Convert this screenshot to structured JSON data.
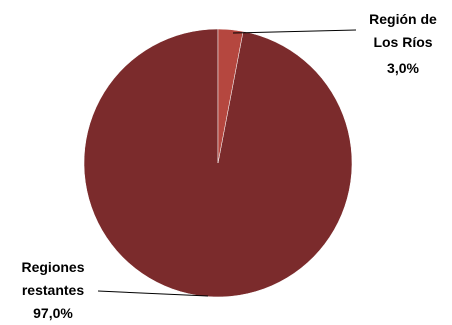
{
  "chart_data": {
    "type": "pie",
    "categories": [
      "Región de Los Ríos",
      "Regiones restantes"
    ],
    "values": [
      3.0,
      97.0
    ],
    "value_labels": [
      "3,0%",
      "97,0%"
    ],
    "colors": [
      "#b5473f",
      "#7b2b2c"
    ]
  }
}
